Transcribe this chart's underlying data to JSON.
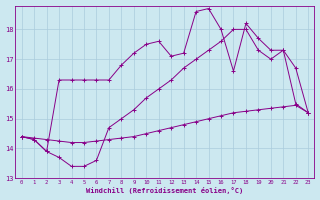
{
  "xlabel": "Windchill (Refroidissement éolien,°C)",
  "bg_color": "#cce8f0",
  "grid_color": "#aaccdd",
  "line_color": "#880088",
  "ylim": [
    13,
    18.8
  ],
  "yticks": [
    13,
    14,
    15,
    16,
    17,
    18
  ],
  "series": [
    [
      14.4,
      14.35,
      14.3,
      14.25,
      14.2,
      14.2,
      14.25,
      14.3,
      14.35,
      14.4,
      14.5,
      14.6,
      14.7,
      14.8,
      14.9,
      15.0,
      15.1,
      15.2,
      15.25,
      15.3,
      15.35,
      15.4,
      15.45,
      15.2
    ],
    [
      14.4,
      14.3,
      13.9,
      13.7,
      13.4,
      13.4,
      13.6,
      14.7,
      15.0,
      15.3,
      15.7,
      16.0,
      16.3,
      16.7,
      17.0,
      17.3,
      17.6,
      18.0,
      18.0,
      17.3,
      17.0,
      17.3,
      15.5,
      15.2
    ],
    [
      14.4,
      14.3,
      13.9,
      16.3,
      16.3,
      16.3,
      16.3,
      16.3,
      16.8,
      17.2,
      17.5,
      17.6,
      17.1,
      17.2,
      18.6,
      18.7,
      18.0,
      16.6,
      18.2,
      17.7,
      17.3,
      17.3,
      16.7,
      15.2
    ]
  ]
}
